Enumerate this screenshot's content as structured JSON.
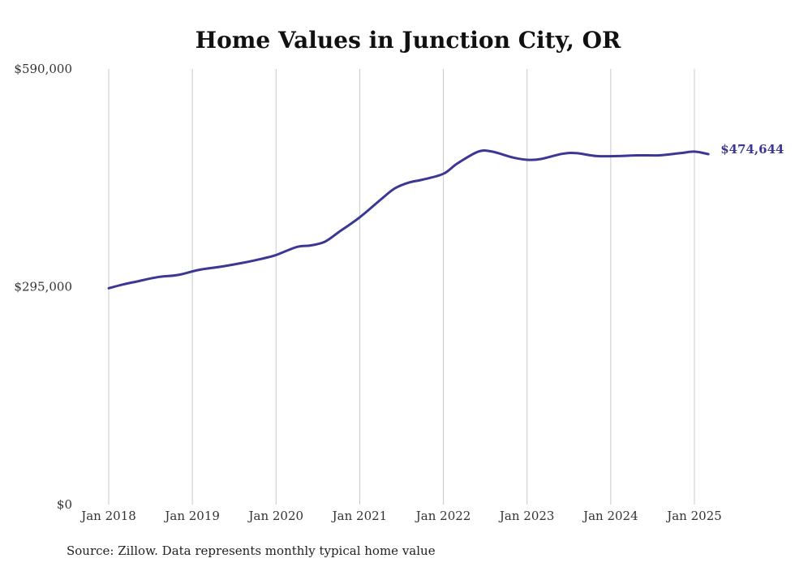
{
  "chart_data": {
    "type": "line",
    "title": "Home Values in Junction City, OR",
    "xlabel": "",
    "ylabel": "",
    "x_ticks": [
      "Jan 2018",
      "Jan 2019",
      "Jan 2020",
      "Jan 2021",
      "Jan 2022",
      "Jan 2023",
      "Jan 2024",
      "Jan 2025"
    ],
    "y_ticks": [
      {
        "value": 0,
        "label": "$0"
      },
      {
        "value": 295000,
        "label": "$295,000"
      },
      {
        "value": 590000,
        "label": "$590,000"
      }
    ],
    "ylim": [
      0,
      590000
    ],
    "xlim": [
      "2018-01",
      "2025-03"
    ],
    "grid": "vertical",
    "series": [
      {
        "color": "#3b3794",
        "end_label": "$474,644",
        "points": [
          {
            "x": "2018-01",
            "y": 293000
          },
          {
            "x": "2018-03",
            "y": 298000
          },
          {
            "x": "2018-05",
            "y": 302000
          },
          {
            "x": "2018-08",
            "y": 308000
          },
          {
            "x": "2018-11",
            "y": 311000
          },
          {
            "x": "2019-02",
            "y": 318000
          },
          {
            "x": "2019-05",
            "y": 322000
          },
          {
            "x": "2019-08",
            "y": 327000
          },
          {
            "x": "2019-11",
            "y": 333000
          },
          {
            "x": "2020-01",
            "y": 338000
          },
          {
            "x": "2020-04",
            "y": 349000
          },
          {
            "x": "2020-06",
            "y": 351000
          },
          {
            "x": "2020-08",
            "y": 356000
          },
          {
            "x": "2020-10",
            "y": 369000
          },
          {
            "x": "2021-01",
            "y": 389000
          },
          {
            "x": "2021-04",
            "y": 413000
          },
          {
            "x": "2021-06",
            "y": 428000
          },
          {
            "x": "2021-08",
            "y": 436000
          },
          {
            "x": "2021-10",
            "y": 440000
          },
          {
            "x": "2022-01",
            "y": 448000
          },
          {
            "x": "2022-03",
            "y": 462000
          },
          {
            "x": "2022-06",
            "y": 478000
          },
          {
            "x": "2022-08",
            "y": 478000
          },
          {
            "x": "2022-11",
            "y": 470000
          },
          {
            "x": "2023-01",
            "y": 467000
          },
          {
            "x": "2023-03",
            "y": 468000
          },
          {
            "x": "2023-06",
            "y": 475000
          },
          {
            "x": "2023-08",
            "y": 476000
          },
          {
            "x": "2023-11",
            "y": 472000
          },
          {
            "x": "2024-02",
            "y": 472000
          },
          {
            "x": "2024-05",
            "y": 473000
          },
          {
            "x": "2024-08",
            "y": 473000
          },
          {
            "x": "2024-11",
            "y": 476000
          },
          {
            "x": "2025-01",
            "y": 478000
          },
          {
            "x": "2025-03",
            "y": 474644
          }
        ]
      }
    ]
  },
  "source": "Source: Zillow. Data represents monthly typical home value"
}
